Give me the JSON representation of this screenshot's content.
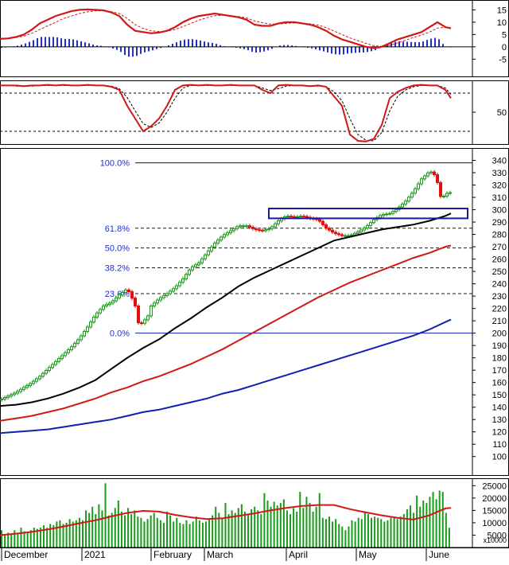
{
  "colors": {
    "up_candle": "#1a9a1a",
    "down_candle": "#e01010",
    "ma_black": "#000000",
    "ma_red": "#d01818",
    "ma_blue": "#1020b0",
    "fib_label": "#2030c8",
    "fib_line": "#1a1a1a",
    "zero_line": "#1020b0",
    "box": "#1a1aa0",
    "volume_bar": "#1a9a1a",
    "volume_ma": "#d01818",
    "macd_hist": "#2030c8",
    "grid_text": "#000000"
  },
  "chart_data": [
    {
      "panel": "macd",
      "type": "line",
      "ylim": [
        -12,
        19
      ],
      "ticks": [
        "15",
        "10",
        "5",
        "0",
        "-5"
      ],
      "tick_values": [
        15,
        10,
        5,
        0,
        -5
      ],
      "x": [
        0,
        10,
        20,
        30,
        40,
        50,
        60,
        70,
        80,
        90,
        100,
        110,
        120,
        130,
        140,
        150,
        160,
        170,
        180,
        190,
        200,
        210,
        220,
        230,
        240,
        250,
        260,
        270,
        280,
        290,
        300,
        310,
        320,
        330,
        340,
        350,
        360,
        370,
        380,
        390,
        400,
        410,
        420,
        430,
        440,
        450,
        460,
        470,
        480,
        490,
        500,
        510,
        520,
        530,
        540,
        550,
        560,
        567
      ],
      "series": [
        {
          "values": [
            3.2,
            3.4,
            4,
            5,
            7,
            9.5,
            11,
            12.5,
            13.5,
            14.5,
            15,
            15.2,
            15,
            14.8,
            14,
            12.5,
            9,
            6.5,
            6,
            5.5,
            5.8,
            6.5,
            8,
            10,
            11.5,
            12.5,
            13,
            13.5,
            13,
            12.5,
            12,
            11,
            9,
            8.5,
            8.5,
            9.5,
            10,
            10,
            9.5,
            9,
            8,
            6.5,
            4.5,
            3,
            2,
            1,
            0,
            -0.5,
            0,
            1.5,
            3,
            4,
            5,
            6,
            8,
            10,
            8,
            7.5
          ]
        },
        {
          "values": [
            3.5,
            3.5,
            3.8,
            4.3,
            5.5,
            7,
            8.5,
            10,
            11.5,
            12.5,
            13.5,
            14.2,
            14.6,
            14.6,
            14.3,
            13.5,
            11.5,
            9,
            7.5,
            6.5,
            6.2,
            6.3,
            7,
            8.2,
            9.5,
            10.8,
            11.8,
            12.6,
            12.8,
            12.6,
            12.3,
            11.7,
            10.5,
            9.8,
            9.2,
            9.2,
            9.5,
            9.7,
            9.6,
            9.3,
            8.8,
            7.8,
            6.4,
            5,
            3.6,
            2.5,
            1.4,
            0.5,
            0.1,
            0.6,
            1.6,
            2.7,
            3.8,
            4.8,
            6,
            7.6,
            8,
            7.7
          ]
        }
      ]
    },
    {
      "panel": "stochastic",
      "type": "line",
      "ylim": [
        0,
        100
      ],
      "ticks": [
        "50"
      ],
      "tick_values": [
        50
      ],
      "x": [
        0,
        10,
        20,
        30,
        40,
        50,
        60,
        70,
        80,
        90,
        100,
        110,
        120,
        130,
        140,
        150,
        160,
        170,
        180,
        190,
        200,
        210,
        220,
        230,
        240,
        250,
        260,
        270,
        280,
        290,
        300,
        310,
        320,
        330,
        340,
        350,
        360,
        370,
        380,
        390,
        400,
        410,
        420,
        430,
        440,
        450,
        460,
        470,
        480,
        490,
        500,
        510,
        520,
        530,
        540,
        550,
        560,
        567
      ],
      "series": [
        {
          "values": [
            92,
            92,
            92,
            91,
            92,
            92,
            93,
            92,
            93,
            92,
            92,
            93,
            92,
            92,
            90,
            85,
            60,
            40,
            20,
            28,
            40,
            60,
            85,
            92,
            93,
            92,
            93,
            92,
            92,
            93,
            92,
            92,
            92,
            85,
            80,
            92,
            93,
            92,
            92,
            91,
            92,
            90,
            75,
            60,
            15,
            5,
            4,
            8,
            30,
            72,
            82,
            88,
            92,
            93,
            92,
            92,
            85,
            72
          ]
        },
        {
          "values": [
            92,
            92,
            91,
            91,
            91,
            92,
            92,
            92,
            92,
            92,
            92,
            92,
            92,
            92,
            91,
            87,
            73,
            52,
            32,
            26,
            33,
            50,
            72,
            88,
            92,
            92,
            92,
            92,
            92,
            92,
            92,
            92,
            92,
            88,
            84,
            87,
            91,
            92,
            92,
            91,
            91,
            90,
            82,
            68,
            40,
            15,
            6,
            5,
            18,
            52,
            75,
            85,
            90,
            92,
            92,
            92,
            88,
            78
          ]
        }
      ]
    },
    {
      "panel": "price",
      "type": "candlestick",
      "ylim": [
        85,
        350
      ],
      "ticks": [
        "340",
        "330",
        "320",
        "310",
        "300",
        "290",
        "280",
        "270",
        "260",
        "250",
        "240",
        "230",
        "220",
        "210",
        "200",
        "190",
        "180",
        "170",
        "160",
        "150",
        "140",
        "130",
        "120",
        "110",
        "100"
      ],
      "tick_values": [
        340,
        330,
        320,
        310,
        300,
        290,
        280,
        270,
        260,
        250,
        240,
        230,
        220,
        210,
        200,
        190,
        180,
        170,
        160,
        150,
        140,
        130,
        120,
        110,
        100
      ],
      "fib_levels": [
        {
          "label": "100.0%",
          "value": 338
        },
        {
          "label": "61.8%",
          "value": 285
        },
        {
          "label": "50.0%",
          "value": 269
        },
        {
          "label": "38.2%",
          "value": 253
        },
        {
          "label": "23.6%",
          "value": 232
        },
        {
          "label": "0.0%",
          "value": 200
        }
      ],
      "box": {
        "x0": 338,
        "x1": 588,
        "y_low": 293,
        "y_high": 301
      },
      "close_x": [
        0,
        10,
        20,
        30,
        40,
        50,
        60,
        70,
        80,
        90,
        100,
        110,
        120,
        130,
        140,
        150,
        160,
        165,
        170,
        175,
        180,
        185,
        190,
        200,
        210,
        220,
        230,
        240,
        250,
        260,
        270,
        280,
        290,
        300,
        310,
        320,
        330,
        340,
        350,
        360,
        370,
        380,
        390,
        400,
        410,
        420,
        430,
        440,
        450,
        460,
        470,
        480,
        490,
        500,
        510,
        520,
        530,
        540,
        545,
        550,
        555,
        560,
        567
      ],
      "close": [
        146,
        149,
        152,
        156,
        160,
        165,
        171,
        177,
        183,
        189,
        196,
        205,
        215,
        222,
        225,
        231,
        236,
        230,
        222,
        205,
        210,
        212,
        222,
        228,
        232,
        237,
        244,
        253,
        257,
        265,
        273,
        279,
        283,
        287,
        287,
        284,
        283,
        285,
        291,
        295,
        294,
        295,
        293,
        292,
        285,
        281,
        279,
        279,
        282,
        286,
        292,
        296,
        297,
        301,
        307,
        315,
        325,
        331,
        330,
        322,
        308,
        313,
        314
      ],
      "ma_x": [
        0,
        20,
        40,
        60,
        80,
        100,
        120,
        140,
        160,
        180,
        200,
        220,
        240,
        260,
        280,
        300,
        320,
        340,
        360,
        380,
        400,
        420,
        440,
        460,
        480,
        500,
        520,
        540,
        560,
        567
      ],
      "series": [
        {
          "name": "",
          "color_key": "ma_black",
          "values": [
            141,
            142,
            144,
            147,
            151,
            156,
            162,
            171,
            180,
            188,
            195,
            204,
            212,
            221,
            229,
            238,
            245,
            251,
            257,
            263,
            269,
            275,
            278,
            281,
            284,
            286,
            288,
            291,
            295,
            297
          ]
        },
        {
          "name": "",
          "color_key": "ma_red",
          "values": [
            129,
            131,
            133,
            136,
            139,
            143,
            147,
            152,
            156,
            161,
            165,
            170,
            175,
            181,
            187,
            194,
            201,
            208,
            215,
            222,
            229,
            235,
            241,
            246,
            251,
            256,
            261,
            265,
            270,
            271
          ]
        },
        {
          "name": "",
          "color_key": "ma_blue",
          "values": [
            119,
            120,
            121,
            122,
            124,
            126,
            128,
            130,
            133,
            136,
            138,
            141,
            144,
            147,
            151,
            154,
            158,
            162,
            166,
            170,
            174,
            178,
            182,
            186,
            190,
            194,
            198,
            203,
            209,
            211
          ]
        }
      ]
    },
    {
      "panel": "volume",
      "type": "bar",
      "ylim": [
        0,
        28000
      ],
      "ticks": [
        "25000",
        "20000",
        "15000",
        "10000",
        "5000"
      ],
      "tick_values": [
        25000,
        20000,
        15000,
        10000,
        5000
      ],
      "unit_label": "x10000",
      "values": [
        7000,
        5000,
        6000,
        5500,
        7000,
        6000,
        8000,
        6500,
        6000,
        7000,
        8000,
        7500,
        8000,
        9000,
        8000,
        9500,
        9000,
        10500,
        11000,
        9500,
        10000,
        11500,
        10500,
        11000,
        12000,
        11000,
        15000,
        14000,
        16500,
        13500,
        17500,
        15000,
        26000,
        13000,
        14000,
        16000,
        19000,
        14500,
        13000,
        16000,
        13500,
        15000,
        12500,
        12000,
        10500,
        11500,
        13000,
        14000,
        12000,
        11000,
        10000,
        14500,
        13000,
        10500,
        12000,
        10000,
        9500,
        11000,
        9500,
        10500,
        12500,
        11000,
        10000,
        10500,
        11500,
        13000,
        16500,
        14000,
        12000,
        18000,
        13500,
        15000,
        14000,
        16000,
        17500,
        14500,
        13500,
        15500,
        16500,
        15000,
        13500,
        22000,
        19000,
        16500,
        18500,
        17000,
        18000,
        19500,
        15000,
        13500,
        16000,
        14500,
        22500,
        16000,
        20500,
        18000,
        14500,
        16500,
        22000,
        12000,
        11500,
        12500,
        10500,
        11500,
        9500,
        8500,
        7000,
        8500,
        11000,
        10500,
        12000,
        11500,
        14500,
        13500,
        12000,
        12500,
        12000,
        11500,
        10500,
        11000,
        12000,
        12500,
        11500,
        12500,
        13500,
        15500,
        17000,
        14000,
        21000,
        16500,
        19000,
        18000,
        20500,
        22500,
        19500,
        23000,
        22500,
        14000,
        8000
      ],
      "ma_x": [
        0,
        20,
        40,
        60,
        80,
        100,
        120,
        140,
        160,
        180,
        200,
        220,
        240,
        260,
        280,
        300,
        320,
        340,
        360,
        380,
        400,
        420,
        440,
        460,
        480,
        500,
        520,
        540,
        560,
        567
      ],
      "ma_values": [
        5000,
        5600,
        6300,
        7300,
        8500,
        9800,
        11000,
        12600,
        14000,
        14800,
        14500,
        13200,
        12200,
        11500,
        11800,
        12800,
        13800,
        15000,
        16000,
        16800,
        17200,
        17200,
        15500,
        14200,
        13000,
        12000,
        11300,
        13000,
        15800,
        16000
      ]
    }
  ],
  "x_axis": {
    "labels": [
      {
        "text": "December",
        "x": 5
      },
      {
        "text": "2021",
        "x": 106
      },
      {
        "text": "February",
        "x": 193
      },
      {
        "text": "March",
        "x": 260
      },
      {
        "text": "April",
        "x": 363
      },
      {
        "text": "May",
        "x": 451
      },
      {
        "text": "June",
        "x": 539
      }
    ]
  }
}
